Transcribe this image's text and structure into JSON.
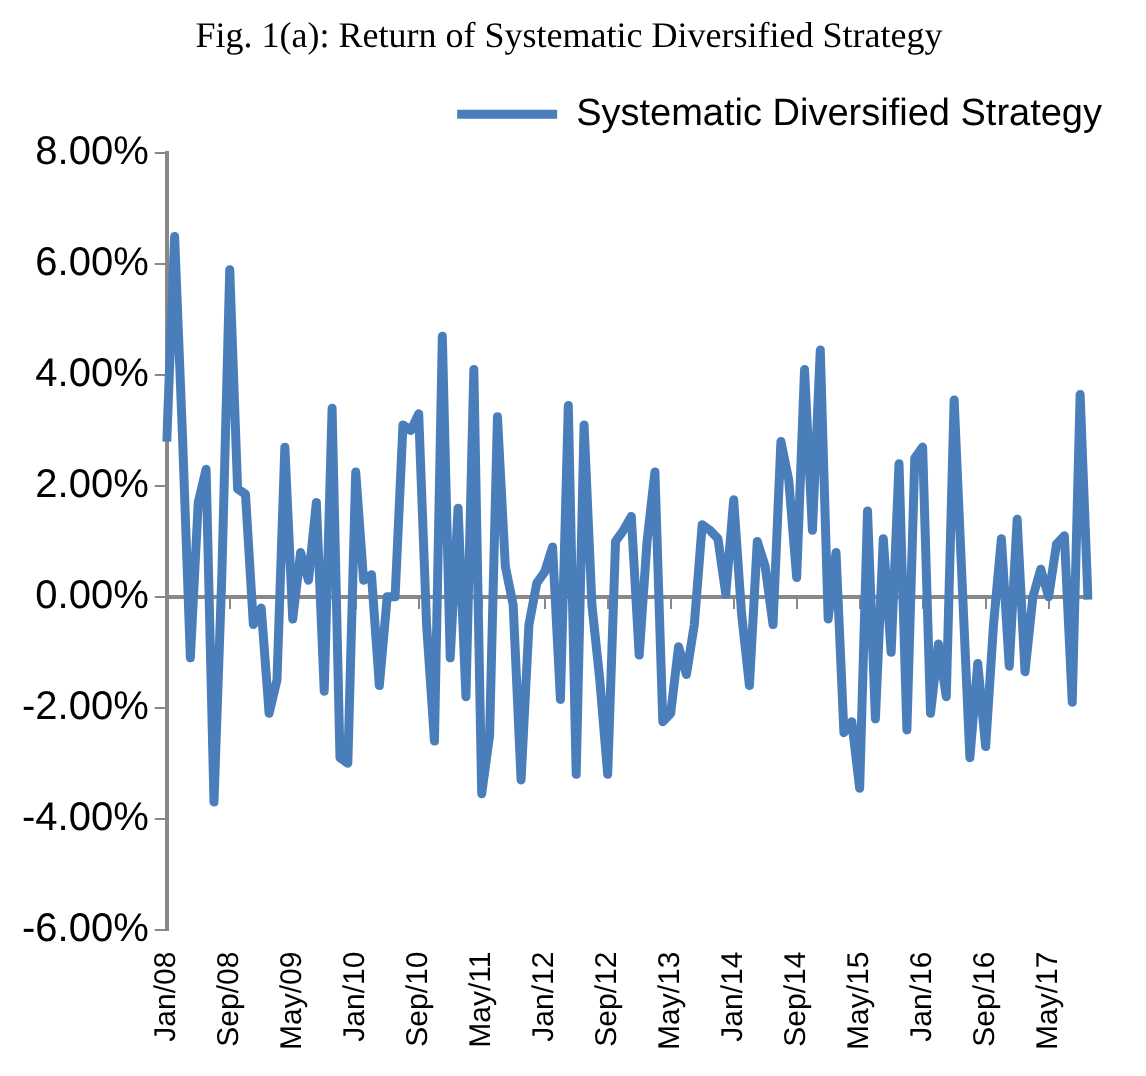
{
  "chart_data": {
    "type": "line",
    "title": "Fig. 1(a): Return of Systematic Diversified Strategy",
    "categories": [
      "Jan/08",
      null,
      null,
      null,
      null,
      null,
      null,
      null,
      "Sep/08",
      null,
      null,
      null,
      null,
      null,
      null,
      null,
      "May/09",
      null,
      null,
      null,
      null,
      null,
      null,
      null,
      "Jan/10",
      null,
      null,
      null,
      null,
      null,
      null,
      null,
      "Sep/10",
      null,
      null,
      null,
      null,
      null,
      null,
      null,
      "May/11",
      null,
      null,
      null,
      null,
      null,
      null,
      null,
      "Jan/12",
      null,
      null,
      null,
      null,
      null,
      null,
      null,
      "Sep/12",
      null,
      null,
      null,
      null,
      null,
      null,
      null,
      "May/13",
      null,
      null,
      null,
      null,
      null,
      null,
      null,
      "Jan/14",
      null,
      null,
      null,
      null,
      null,
      null,
      null,
      "Sep/14",
      null,
      null,
      null,
      null,
      null,
      null,
      null,
      "May/15",
      null,
      null,
      null,
      null,
      null,
      null,
      null,
      "Jan/16",
      null,
      null,
      null,
      null,
      null,
      null,
      null,
      "Sep/16",
      null,
      null,
      null,
      null,
      null,
      null,
      null,
      "May/17",
      null,
      null,
      null,
      null,
      null
    ],
    "series": [
      {
        "name": "Systematic Diversified Strategy",
        "color": "#4a7ebb",
        "values": [
          2.8,
          6.5,
          2.9,
          -1.1,
          1.7,
          2.3,
          -3.7,
          0.4,
          5.9,
          1.95,
          1.85,
          -0.5,
          -0.2,
          -2.1,
          -1.5,
          2.7,
          -0.4,
          0.8,
          0.3,
          1.7,
          -1.7,
          3.4,
          -2.9,
          -3.0,
          2.25,
          0.3,
          0.4,
          -1.6,
          0.0,
          0.0,
          3.1,
          3.0,
          3.3,
          -0.5,
          -2.6,
          4.7,
          -1.1,
          1.6,
          -1.8,
          4.1,
          -3.55,
          -2.5,
          3.25,
          0.55,
          -0.15,
          -3.3,
          -0.5,
          0.25,
          0.45,
          0.9,
          -1.85,
          3.45,
          -3.2,
          3.1,
          -0.15,
          -1.5,
          -3.2,
          1.0,
          1.2,
          1.45,
          -1.05,
          1.0,
          2.25,
          -2.25,
          -2.1,
          -0.9,
          -1.4,
          -0.5,
          1.3,
          1.2,
          1.05,
          0.05,
          1.75,
          -0.3,
          -1.6,
          1.0,
          0.55,
          -0.5,
          2.8,
          2.1,
          0.35,
          4.1,
          1.2,
          4.45,
          -0.4,
          0.8,
          -2.45,
          -2.25,
          -3.45,
          1.55,
          -2.2,
          1.05,
          -1.0,
          2.4,
          -2.4,
          2.5,
          2.7,
          -2.1,
          -0.85,
          -1.8,
          3.55,
          0.3,
          -2.9,
          -1.2,
          -2.7,
          -0.5,
          1.05,
          -1.25,
          1.4,
          -1.35,
          0.0,
          0.5,
          0.0,
          0.95,
          1.1,
          -1.9,
          3.65,
          -0.05
        ]
      }
    ],
    "ylim": [
      -6,
      8
    ],
    "yticks": [
      {
        "value": -6,
        "label": "-6.00%"
      },
      {
        "value": -4,
        "label": "-4.00%"
      },
      {
        "value": -2,
        "label": "-2.00%"
      },
      {
        "value": 0,
        "label": "0.00%"
      },
      {
        "value": 2,
        "label": "2.00%"
      },
      {
        "value": 4,
        "label": "4.00%"
      },
      {
        "value": 6,
        "label": "6.00%"
      },
      {
        "value": 8,
        "label": "8.00%"
      }
    ],
    "legend": "top right",
    "marker": "none",
    "line_style": "solid"
  }
}
